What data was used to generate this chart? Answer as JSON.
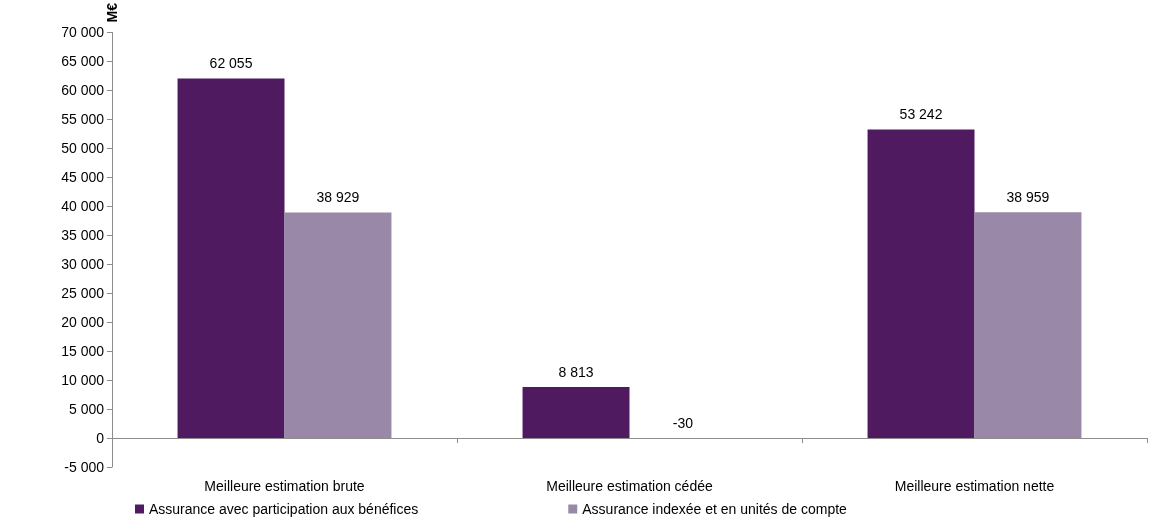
{
  "chart_data": {
    "type": "bar",
    "ylabel": "M€",
    "categories": [
      "Meilleure estimation brute",
      "Meilleure estimation cédée",
      "Meilleure estimation nette"
    ],
    "series": [
      {
        "name": "Assurance avec participation aux bénéfices",
        "color": "#4f1a60",
        "values": [
          62055,
          8813,
          53242
        ],
        "value_labels": [
          "62 055",
          "8 813",
          "53 242"
        ]
      },
      {
        "name": "Assurance indexée et en unités de compte",
        "color": "#9988a7",
        "values": [
          38929,
          -30,
          38959
        ],
        "value_labels": [
          "38 929",
          "-30",
          "38 959"
        ]
      }
    ],
    "ylim": [
      -5000,
      70000
    ],
    "yticks": [
      {
        "value": -5000,
        "label": "-5 000"
      },
      0,
      {
        "value": 5000,
        "label": "5 000"
      },
      {
        "value": 10000,
        "label": "10 000"
      },
      {
        "value": 15000,
        "label": "15 000"
      },
      {
        "value": 20000,
        "label": "20 000"
      },
      {
        "value": 25000,
        "label": "25 000"
      },
      {
        "value": 30000,
        "label": "30 000"
      },
      {
        "value": 35000,
        "label": "35 000"
      },
      {
        "value": 40000,
        "label": "40 000"
      },
      {
        "value": 45000,
        "label": "45 000"
      },
      {
        "value": 50000,
        "label": "50 000"
      },
      {
        "value": 55000,
        "label": "55 000"
      },
      {
        "value": 60000,
        "label": "60 000"
      },
      {
        "value": 65000,
        "label": "65 000"
      },
      {
        "value": 70000,
        "label": "70 000"
      }
    ],
    "legend": "bottom left"
  }
}
